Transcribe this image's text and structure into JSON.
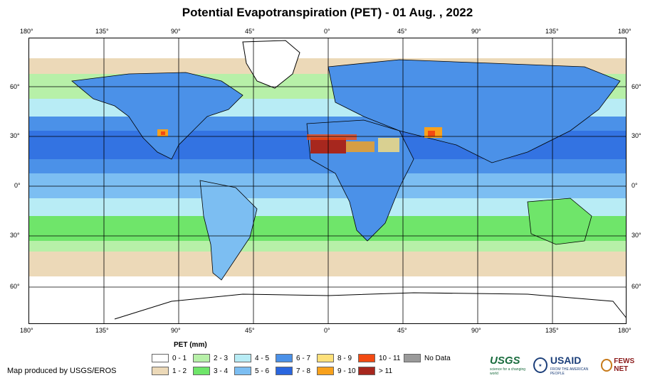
{
  "title": "Potential Evapotranspiration (PET) - 01 Aug. , 2022",
  "map": {
    "lon_ticks": [
      "180°",
      "135°",
      "90°",
      "45°",
      "0°",
      "45°",
      "90°",
      "135°",
      "180°"
    ],
    "lat_ticks_left": [
      "60°",
      "30°",
      "0°",
      "30°",
      "60°"
    ],
    "lat_ticks_right": [
      "60°",
      "30°",
      "0°",
      "30°",
      "60°"
    ]
  },
  "legend": {
    "title": "PET (mm)",
    "items": [
      {
        "label": "0 - 1",
        "color": "#ffffff"
      },
      {
        "label": "1 - 2",
        "color": "#ecd9b8"
      },
      {
        "label": "2 - 3",
        "color": "#b7f0a8"
      },
      {
        "label": "3 - 4",
        "color": "#6fe56a"
      },
      {
        "label": "4 - 5",
        "color": "#b8ecf5"
      },
      {
        "label": "5 - 6",
        "color": "#7cbef2"
      },
      {
        "label": "6 - 7",
        "color": "#4b91e8"
      },
      {
        "label": "7 - 8",
        "color": "#2a66df"
      },
      {
        "label": "8 - 9",
        "color": "#fde07a"
      },
      {
        "label": "9 - 10",
        "color": "#f8a11c"
      },
      {
        "label": "10 - 11",
        "color": "#f24a12"
      },
      {
        "label": "> 11",
        "color": "#a7271e"
      },
      {
        "label": "No Data",
        "color": "#9a9a9a"
      }
    ]
  },
  "credit": "Map produced by USGS/EROS",
  "logos": {
    "usgs": "USGS",
    "usgs_tagline": "science for a changing world",
    "usaid": "USAID",
    "usaid_tagline": "FROM THE AMERICAN PEOPLE",
    "fews": "FEWS NET"
  }
}
